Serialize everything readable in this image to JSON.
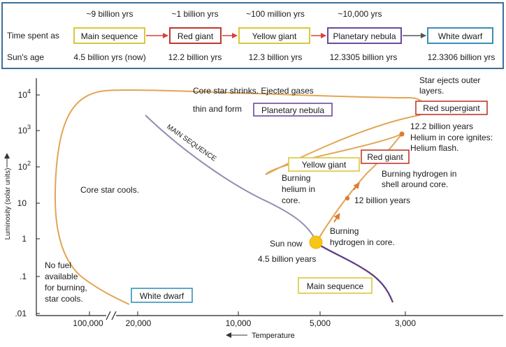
{
  "colors": {
    "table_border": "#3d6f9a",
    "orange_track": "#e2a553",
    "main_sequence_line": "#8f8fb4",
    "late_track": "#5e3b82",
    "arrow": "#d8423a",
    "sun": "#f5c518",
    "main_sequence_box": "#d9c93a",
    "red_giant_box": "#c0392b",
    "yellow_giant_box": "#d9c93a",
    "planetary_nebula_box": "#6a4a9a",
    "white_dwarf_box": "#3a8fb7",
    "dot": "#e07b2e"
  },
  "timeline": {
    "row_label_time": "Time spent as",
    "row_label_age": "Sun's age",
    "stages": [
      {
        "duration": "~9 billion yrs",
        "name": "Main sequence",
        "age": "4.5 billion yrs (now)",
        "box_color": "#d9c93a"
      },
      {
        "duration": "~1 billion yrs",
        "name": "Red giant",
        "age": "12.2 billion yrs",
        "box_color": "#c0392b"
      },
      {
        "duration": "~100 million yrs",
        "name": "Yellow giant",
        "age": "12.3 billion yrs",
        "box_color": "#d9c93a"
      },
      {
        "duration": "~10,000 yrs",
        "name": "Planetary nebula",
        "age": "12.3305 billion yrs",
        "box_color": "#6a4a9a"
      },
      {
        "duration": "",
        "name": "White dwarf",
        "age": "12.3306 billion yrs",
        "box_color": "#3a8fb7"
      }
    ]
  },
  "diagram": {
    "y_axis_label": "Luminosity (solar units)",
    "x_axis_label": "Temperature",
    "y_ticks": [
      {
        "base": "10",
        "exp": "4"
      },
      {
        "base": "10",
        "exp": "3"
      },
      {
        "base": "10",
        "exp": "2"
      },
      {
        "base": "10",
        "exp": ""
      },
      {
        "base": "1",
        "exp": ""
      },
      {
        "base": ".1",
        "exp": ""
      },
      {
        "base": ".01",
        "exp": ""
      }
    ],
    "x_ticks": [
      "100,000",
      "20,000",
      "10,000",
      "5,000",
      "3,000"
    ],
    "main_sequence_curve_label": "MAIN SEQUENCE",
    "boxes": {
      "planetary_nebula": "Planetary nebula",
      "red_supergiant": "Red supergiant",
      "yellow_giant": "Yellow giant",
      "red_giant": "Red giant",
      "white_dwarf": "White dwarf",
      "main_sequence": "Main sequence"
    },
    "notes": {
      "core_shrinks_line1": "Core star shrinks. Ejected gases",
      "core_shrinks_line2": "thin and form",
      "ejects_line1": "Star ejects outer",
      "ejects_line2": "layers.",
      "helium_flash_line1": "12.2 billion years",
      "helium_flash_line2": "Helium in core ignites:",
      "helium_flash_line3": "Helium flash.",
      "shell_line1": "Burning hydrogen in",
      "shell_line2": "shell around core.",
      "twelve_billion": "12 billion years",
      "burning_helium_line1": "Burning",
      "burning_helium_line2": "helium in",
      "burning_helium_line3": "core.",
      "core_cools": "Core star cools.",
      "sun_now": "Sun now",
      "sun_age": "4.5 billion years",
      "burning_core_line1": "Burning",
      "burning_core_line2": "hydrogen in core.",
      "no_fuel_line1": "No fuel",
      "no_fuel_line2": "available",
      "no_fuel_line3": "for burning,",
      "no_fuel_line4": "star cools."
    }
  }
}
